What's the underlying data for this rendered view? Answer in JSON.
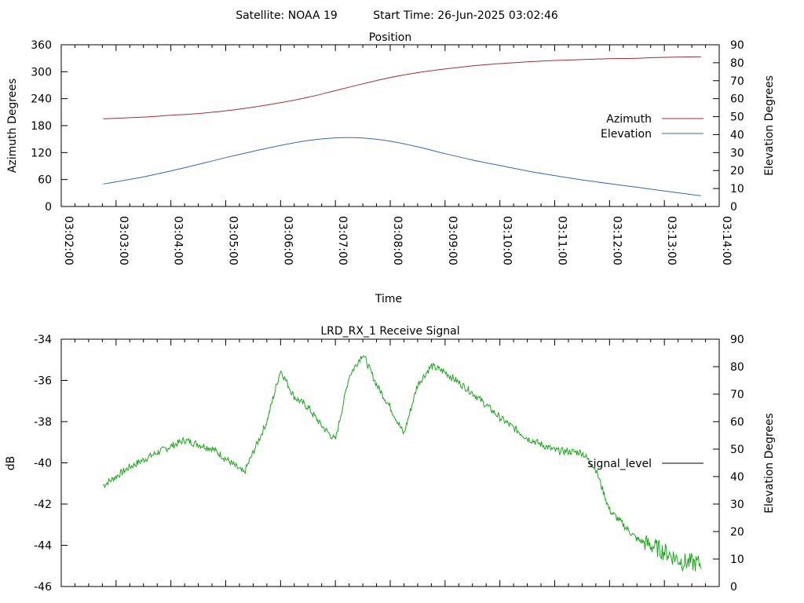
{
  "header": {
    "satellite_label": "Satellite: NOAA 19",
    "start_time_label": "Start Time: 26-Jun-2025 03:02:46"
  },
  "chart_data": [
    {
      "type": "line",
      "title": "Position",
      "xlabel": "Time",
      "ylabel": "Azimuth Degrees",
      "y2label": "Elevation Degrees",
      "xlim": [
        "03:02:00",
        "03:14:00"
      ],
      "x_ticks": [
        "03:02:00",
        "03:03:00",
        "03:04:00",
        "03:05:00",
        "03:06:00",
        "03:07:00",
        "03:08:00",
        "03:09:00",
        "03:10:00",
        "03:11:00",
        "03:12:00",
        "03:13:00",
        "03:14:00"
      ],
      "ylim": [
        0,
        360
      ],
      "y_ticks": [
        "0",
        "60",
        "120",
        "180",
        "240",
        "300",
        "360"
      ],
      "y2lim": [
        0,
        90
      ],
      "y2_ticks": [
        "0",
        "10",
        "20",
        "30",
        "40",
        "50",
        "60",
        "70",
        "80",
        "90"
      ],
      "legend_position": "right",
      "x": [
        "03:02:46",
        "03:03:30",
        "03:04:00",
        "03:04:30",
        "03:05:00",
        "03:05:30",
        "03:06:00",
        "03:06:30",
        "03:07:00",
        "03:07:30",
        "03:08:00",
        "03:08:30",
        "03:09:00",
        "03:09:30",
        "03:10:00",
        "03:10:30",
        "03:11:00",
        "03:11:30",
        "03:12:00",
        "03:12:30",
        "03:13:00",
        "03:13:40"
      ],
      "series": [
        {
          "name": "Azimuth",
          "axis": "left",
          "color": "#a0303a",
          "values": [
            195,
            199,
            203,
            207,
            213,
            221,
            231,
            243,
            258,
            273,
            287,
            298,
            306,
            313,
            318,
            322,
            325,
            327,
            329,
            330,
            332,
            333
          ]
        },
        {
          "name": "Elevation",
          "axis": "right",
          "color": "#2e6db4",
          "values": [
            12.5,
            16.5,
            19.8,
            23.4,
            27.2,
            30.7,
            34.0,
            36.7,
            38.2,
            38.1,
            36.3,
            33.2,
            29.4,
            25.9,
            22.8,
            19.8,
            17.2,
            14.8,
            12.7,
            10.7,
            8.6,
            6.0
          ]
        }
      ]
    },
    {
      "type": "line",
      "title": "LRD_RX_1 Receive Signal",
      "ylabel": "dB",
      "y2label": "Elevation Degrees",
      "ylim": [
        -46,
        -34
      ],
      "y_ticks": [
        "-34",
        "-36",
        "-38",
        "-40",
        "-42",
        "-44",
        "-46"
      ],
      "y2lim": [
        0,
        90
      ],
      "y2_ticks": [
        "0",
        "10",
        "20",
        "30",
        "40",
        "50",
        "60",
        "70",
        "80",
        "90"
      ],
      "legend_position": "right",
      "legend_entry": "signal_level",
      "legend_line_color": "#000000",
      "x": [
        "03:02:46",
        "03:03:15",
        "03:03:45",
        "03:04:15",
        "03:04:45",
        "03:05:00",
        "03:05:20",
        "03:05:45",
        "03:06:00",
        "03:06:15",
        "03:06:30",
        "03:06:45",
        "03:07:00",
        "03:07:15",
        "03:07:30",
        "03:07:45",
        "03:08:00",
        "03:08:15",
        "03:08:30",
        "03:08:45",
        "03:09:00",
        "03:09:30",
        "03:10:00",
        "03:10:30",
        "03:11:00",
        "03:11:30",
        "03:11:45",
        "03:12:00",
        "03:12:30",
        "03:13:00",
        "03:13:20",
        "03:13:40"
      ],
      "series": [
        {
          "name": "signal_level",
          "color": "#1aa81a",
          "values": [
            -41.1,
            -40.2,
            -39.5,
            -38.9,
            -39.3,
            -39.8,
            -40.5,
            -38.0,
            -35.5,
            -36.8,
            -37.3,
            -38.2,
            -38.9,
            -35.8,
            -34.7,
            -36.2,
            -37.3,
            -38.6,
            -36.2,
            -35.3,
            -35.6,
            -36.6,
            -37.8,
            -38.8,
            -39.4,
            -39.5,
            -40.3,
            -42.3,
            -43.7,
            -44.3,
            -44.8,
            -44.9
          ]
        }
      ]
    }
  ]
}
